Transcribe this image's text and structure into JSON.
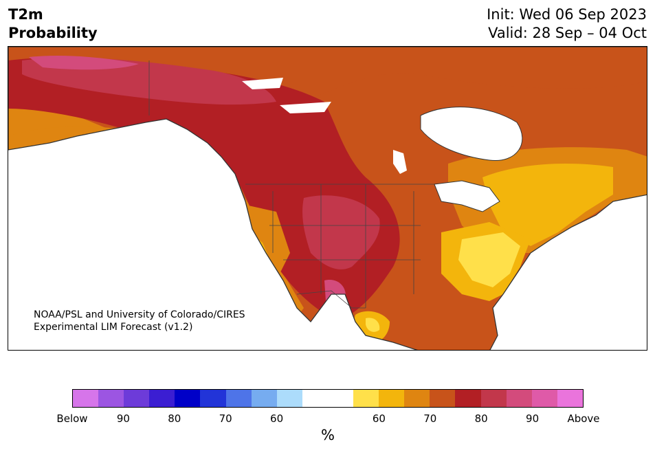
{
  "title": {
    "left_line1": "T2m",
    "left_line2": "Probability",
    "right_line1": "Init: Wed 06 Sep 2023",
    "right_line2": "Valid: 28 Sep – 04 Oct"
  },
  "credit": {
    "line1": "NOAA/PSL and University of Colorado/CIRES",
    "line2": "Experimental LIM Forecast (v1.2)"
  },
  "colorbar": {
    "colors": [
      "#d675ea",
      "#9c55e2",
      "#6d3bd9",
      "#3b1ed2",
      "#0000c8",
      "#2234d8",
      "#4e74e8",
      "#76acf0",
      "#acdcfb",
      "#ffffff",
      "#ffffff",
      "#ffe04a",
      "#f3b50c",
      "#df8511",
      "#c8531a",
      "#b21f24",
      "#c2374b",
      "#d34b7c",
      "#df5aa8",
      "#ea74dc"
    ],
    "ticks": [
      "Below",
      "90",
      "80",
      "70",
      "60",
      "60",
      "70",
      "80",
      "90",
      "Above"
    ],
    "unit": "%"
  },
  "map": {
    "region": "North America",
    "ocean_color": "#ffffff",
    "border_color": "#333333"
  }
}
